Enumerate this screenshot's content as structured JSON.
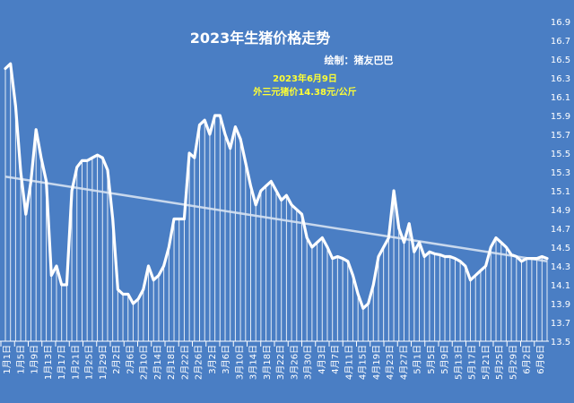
{
  "chart_data": {
    "type": "line",
    "title": "2023年生猪价格走势",
    "credit": "绘制：猪友巴巴",
    "annotation": [
      "2023年6月9日",
      "外三元猪价14.38元/公斤"
    ],
    "ylim": [
      13.5,
      16.9
    ],
    "yticks": [
      "13.5",
      "13.7",
      "13.9",
      "14.1",
      "14.3",
      "14.5",
      "14.7",
      "14.9",
      "15.1",
      "15.3",
      "15.5",
      "15.7",
      "15.9",
      "16.1",
      "16.3",
      "16.5",
      "16.7",
      "16.9"
    ],
    "xticks": [
      "1月1日",
      "1月5日",
      "1月9日",
      "1月13日",
      "1月17日",
      "1月21日",
      "1月25日",
      "1月29日",
      "2月2日",
      "2月6日",
      "2月10日",
      "2月14日",
      "2月18日",
      "2月22日",
      "2月26日",
      "3月2日",
      "3月6日",
      "3月10日",
      "3月14日",
      "3月18日",
      "3月22日",
      "3月26日",
      "3月30日",
      "4月3日",
      "4月7日",
      "4月11日",
      "4月15日",
      "4月19日",
      "4月23日",
      "4月27日",
      "5月1日",
      "5月5日",
      "5月9日",
      "5月13日",
      "5月17日",
      "5月21日",
      "5月25日",
      "5月29日",
      "6月2日",
      "6月6日"
    ],
    "trendline": [
      15.25,
      14.35
    ],
    "series": [
      {
        "values": [
          16.4,
          16.45,
          16.0,
          15.3,
          14.85,
          15.2,
          15.75,
          15.45,
          15.2,
          14.2,
          14.3,
          14.1,
          14.1,
          15.1,
          15.35,
          15.42,
          15.42,
          15.45,
          15.48,
          15.45,
          15.32,
          14.8,
          14.05,
          14.0,
          14.0,
          13.9,
          13.95,
          14.05,
          14.3,
          14.15,
          14.2,
          14.3,
          14.5,
          14.8,
          14.8,
          14.8,
          15.5,
          15.45,
          15.8,
          15.85,
          15.7,
          15.9,
          15.9,
          15.7,
          15.55,
          15.78,
          15.65,
          15.4,
          15.15,
          14.95,
          15.1,
          15.15,
          15.2,
          15.1,
          15.0,
          15.05,
          14.95,
          14.9,
          14.85,
          14.6,
          14.5,
          14.55,
          14.6,
          14.5,
          14.38,
          14.4,
          14.38,
          14.35,
          14.2,
          14.0,
          13.85,
          13.9,
          14.1,
          14.4,
          14.5,
          14.6,
          15.1,
          14.7,
          14.55,
          14.75,
          14.45,
          14.55,
          14.4,
          14.45,
          14.43,
          14.42,
          14.4,
          14.4,
          14.38,
          14.35,
          14.3,
          14.15,
          14.2,
          14.25,
          14.3,
          14.5,
          14.6,
          14.55,
          14.5,
          14.42,
          14.4,
          14.35,
          14.38,
          14.38,
          14.38,
          14.4,
          14.38
        ]
      }
    ]
  }
}
